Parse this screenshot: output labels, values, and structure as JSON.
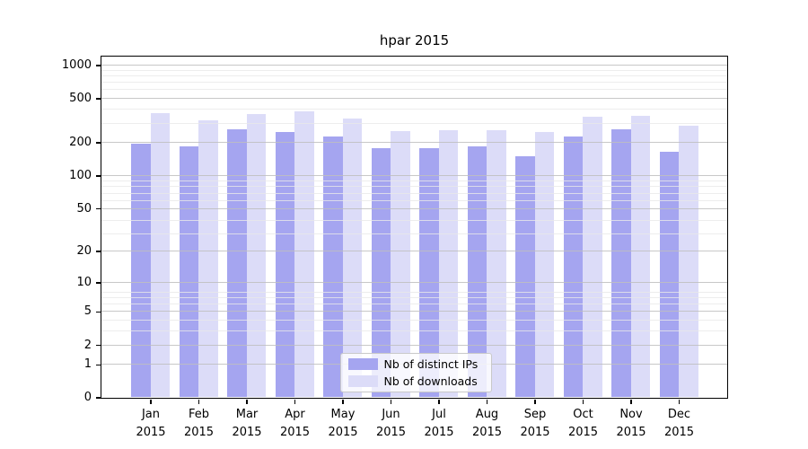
{
  "chart_data": {
    "type": "bar",
    "title": "hpar 2015",
    "categories": [
      "Jan 2015",
      "Feb 2015",
      "Mar 2015",
      "Apr 2015",
      "May 2015",
      "Jun 2015",
      "Jul 2015",
      "Aug 2015",
      "Sep 2015",
      "Oct 2015",
      "Nov 2015",
      "Dec 2015"
    ],
    "series": [
      {
        "name": "Nb of distinct IPs",
        "color": "#a5a5f0",
        "values": [
          193,
          183,
          264,
          247,
          225,
          176,
          176,
          185,
          150,
          225,
          263,
          165
        ]
      },
      {
        "name": "Nb of downloads",
        "color": "#dcdcf8",
        "values": [
          370,
          318,
          360,
          384,
          328,
          252,
          260,
          260,
          248,
          344,
          347,
          285
        ]
      }
    ],
    "xlabel": "",
    "ylabel": "",
    "yscale": "log1p",
    "yticks": [
      0,
      1,
      2,
      5,
      10,
      20,
      50,
      100,
      200,
      500,
      1000
    ],
    "ylim": [
      0,
      1200
    ],
    "grid": "horizontal major and minor gridlines, drawn over bars",
    "legend_position": "lower center inside plot"
  }
}
